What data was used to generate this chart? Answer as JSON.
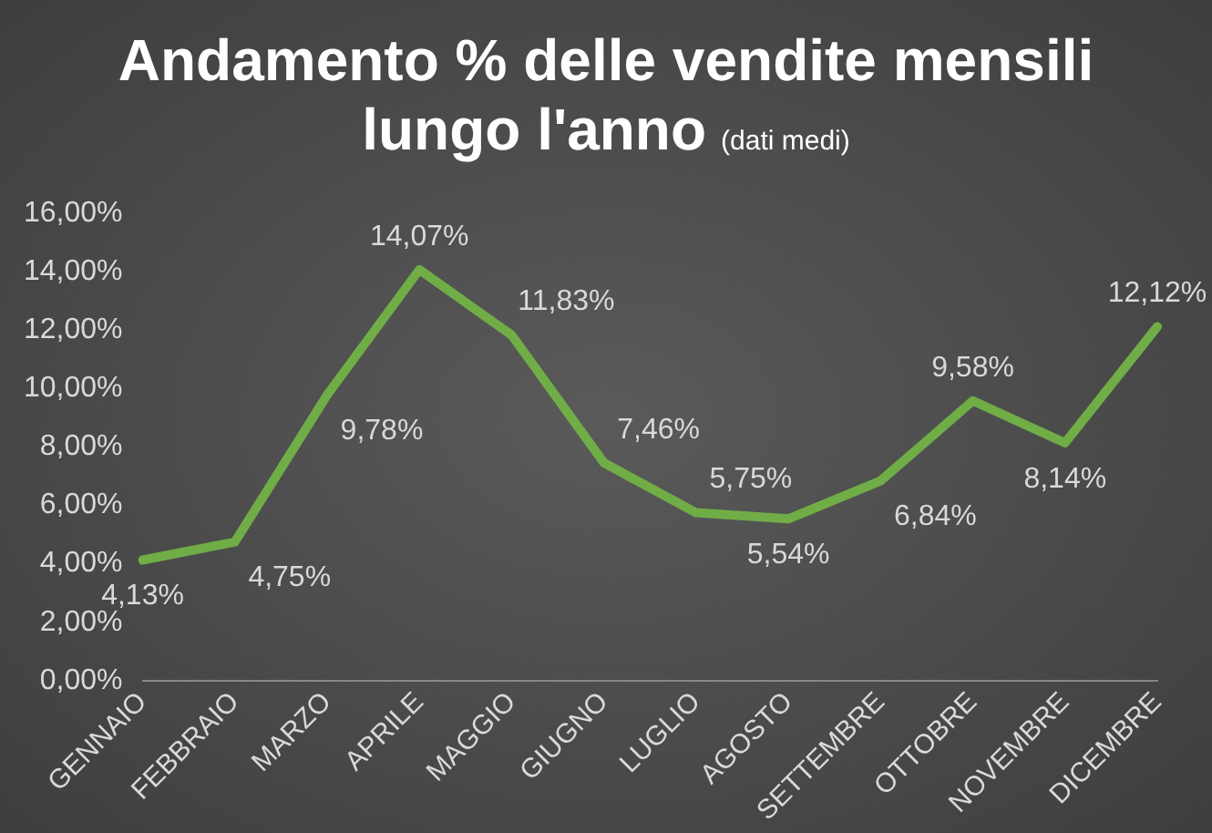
{
  "chart_data": {
    "type": "line",
    "title": "Andamento % delle vendite mensili lungo l'anno",
    "subtitle": "(dati medi)",
    "categories": [
      "GENNAIO",
      "FEBBRAIO",
      "MARZO",
      "APRILE",
      "MAGGIO",
      "GIUGNO",
      "LUGLIO",
      "AGOSTO",
      "SETTEMBRE",
      "OTTOBRE",
      "NOVEMBRE",
      "DICEMBRE"
    ],
    "series": [
      {
        "color": "#70ad47",
        "values": [
          4.13,
          4.75,
          9.78,
          14.07,
          11.83,
          7.46,
          5.75,
          5.54,
          6.84,
          9.58,
          8.14,
          12.12
        ],
        "value_labels": [
          "4,13%",
          "4,75%",
          "9,78%",
          "14,07%",
          "11,83%",
          "7,46%",
          "5,75%",
          "5,54%",
          "6,84%",
          "9,58%",
          "8,14%",
          "12,12%"
        ]
      }
    ],
    "ylim": [
      0,
      16
    ],
    "yticks": [
      {
        "value": 0,
        "label": "0,00%"
      },
      {
        "value": 2,
        "label": "2,00%"
      },
      {
        "value": 4,
        "label": "4,00%"
      },
      {
        "value": 6,
        "label": "6,00%"
      },
      {
        "value": 8,
        "label": "8,00%"
      },
      {
        "value": 10,
        "label": "10,00%"
      },
      {
        "value": 12,
        "label": "12,00%"
      },
      {
        "value": 14,
        "label": "14,00%"
      },
      {
        "value": 16,
        "label": "16,00%"
      }
    ],
    "grid": false,
    "legend": false,
    "marker": "none",
    "line_style": "solid"
  }
}
